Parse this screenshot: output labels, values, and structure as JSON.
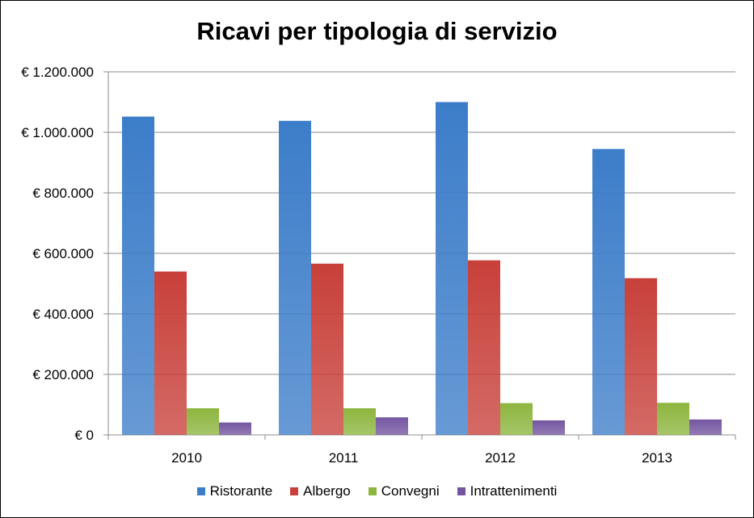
{
  "chart_data": {
    "type": "bar",
    "title": "Ricavi per tipologia di servizio",
    "xlabel": "",
    "ylabel": "",
    "categories": [
      "2010",
      "2011",
      "2012",
      "2013"
    ],
    "ylim": [
      0,
      1200000
    ],
    "y_ticks": [
      0,
      200000,
      400000,
      600000,
      800000,
      1000000,
      1200000
    ],
    "y_tick_labels": [
      "€ 0",
      "€ 200.000",
      "€ 400.000",
      "€ 600.000",
      "€ 800.000",
      "€ 1.000.000",
      "€ 1.200.000"
    ],
    "grid": true,
    "legend_position": "bottom",
    "series": [
      {
        "name": "Ristorante",
        "color": "#3C7DC9",
        "values": [
          1052000,
          1038000,
          1100000,
          945000
        ]
      },
      {
        "name": "Albergo",
        "color": "#C8403A",
        "values": [
          540000,
          566000,
          577000,
          518000
        ]
      },
      {
        "name": "Convegni",
        "color": "#8DB53E",
        "values": [
          88000,
          88000,
          105000,
          106000
        ]
      },
      {
        "name": "Intrattenimenti",
        "color": "#7456A0",
        "values": [
          41000,
          58000,
          48000,
          51000
        ]
      }
    ]
  }
}
